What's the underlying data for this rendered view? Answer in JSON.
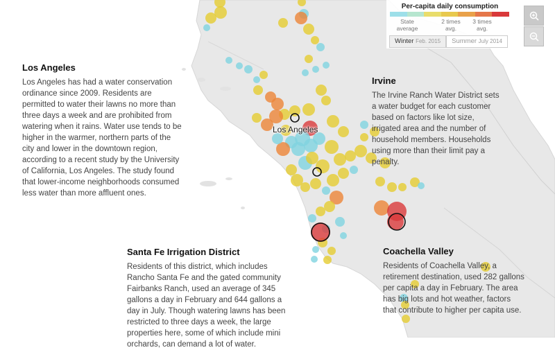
{
  "map": {
    "city_label": "Los Angeles",
    "colors": {
      "blue": "#7fd3e0",
      "yellow": "#e5cc31",
      "orange": "#ec8537",
      "red": "#d9393b",
      "land": "#e9e9e9",
      "water": "#ffffff"
    }
  },
  "legend": {
    "title": "Per-capita daily consumption",
    "colors": [
      "#9ddfe9",
      "#b6e6cf",
      "#e9dd6b",
      "#e8c94e",
      "#e9a14a",
      "#e5774a",
      "#d9393b"
    ],
    "tick_labels": [
      "State average",
      "2 times avg.",
      "3 times avg."
    ],
    "seasons": [
      {
        "label": "Winter",
        "date": "Feb. 2015",
        "active": true
      },
      {
        "label": "Summer",
        "date": "July 2014",
        "active": false
      }
    ]
  },
  "controls": {
    "zoom_in": "zoom-in-icon",
    "zoom_out": "zoom-out-icon"
  },
  "annotations": {
    "los_angeles": {
      "title": "Los Angeles",
      "body": "Los Angeles has had a water conservation ordinance since 2009. Residents are permitted to water their lawns no more than three days a week and are prohibited from watering when it rains. Water use tends to be higher in the warmer, northern parts of the city and lower in the downtown region, according to a recent study by the University of California, Los Angeles. The study found that lower-income neighborhoods consumed less water than more affluent ones."
    },
    "irvine": {
      "title": "Irvine",
      "body": "The Irvine Ranch Water District sets a water budget for each customer based on factors like lot size, irrigated area and the number of household members. Households using more than their limit pay a penalty."
    },
    "santa_fe": {
      "title": "Santa Fe Irrigation District",
      "body": "Residents of this district, which includes Rancho Santa Fe and the gated community Fairbanks Ranch, used an average of 345 gallons a day in February and 644 gallons a day in July. Though watering lawns has been restricted to three days a week, the large properties here, some of which include mini orchards, can demand a lot of water."
    },
    "coachella": {
      "title": "Coachella Valley",
      "body": "Residents of Coachella Valley, a retirement destination, used 282 gallons per capita a day in February. The area has big lots and hot weather, factors that contribute to higher per capita use."
    }
  }
}
